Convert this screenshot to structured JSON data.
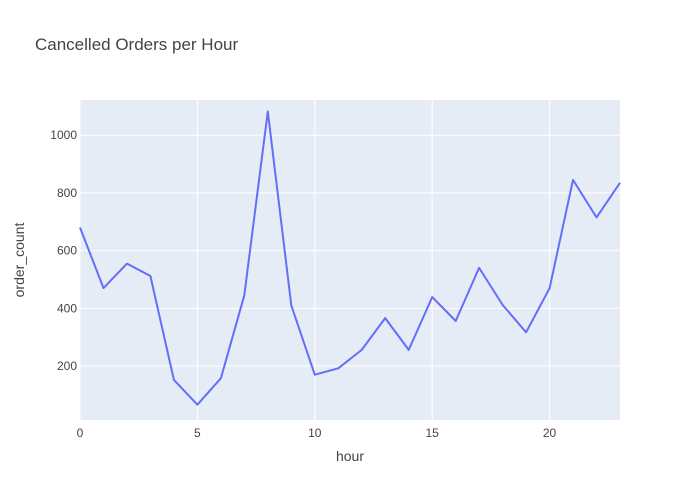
{
  "chart_data": {
    "type": "line",
    "title": "Cancelled Orders per Hour",
    "xlabel": "hour",
    "ylabel": "order_count",
    "xlim": [
      0,
      23
    ],
    "ylim": [
      13,
      1122
    ],
    "xticks": [
      0,
      5,
      10,
      15,
      20
    ],
    "yticks": [
      200,
      400,
      600,
      800,
      1000
    ],
    "grid": true,
    "series": [
      {
        "name": "order_count",
        "color": "#636EFA",
        "x": [
          0,
          1,
          2,
          3,
          4,
          5,
          6,
          7,
          8,
          9,
          10,
          11,
          12,
          13,
          14,
          15,
          16,
          17,
          18,
          19,
          20,
          21,
          22,
          23
        ],
        "values": [
          680,
          470,
          555,
          512,
          152,
          66,
          158,
          445,
          1082,
          410,
          170,
          192,
          256,
          366,
          256,
          439,
          356,
          540,
          412,
          317,
          470,
          845,
          715,
          835
        ]
      }
    ]
  },
  "colors": {
    "plot_bg": "#E5ECF6",
    "grid": "#FFFFFF",
    "text": "#444444",
    "line": "#636EFA"
  }
}
